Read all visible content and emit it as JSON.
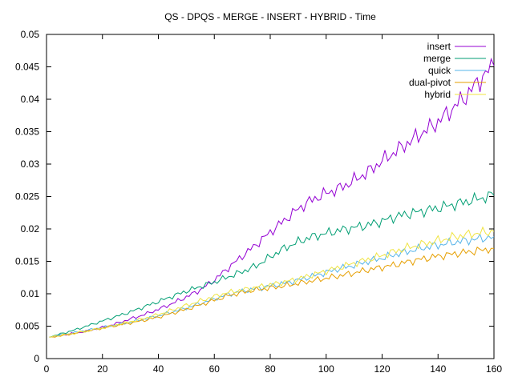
{
  "chart_data": {
    "type": "line",
    "title": "QS - DPQS - MERGE - INSERT - HYBRID - Time",
    "xlabel": "",
    "ylabel": "",
    "xlim": [
      0,
      160
    ],
    "ylim": [
      0,
      0.05
    ],
    "x_ticks": [
      0,
      20,
      40,
      60,
      80,
      100,
      120,
      140,
      160
    ],
    "x_tick_labels": [
      "0",
      "20",
      "40",
      "60",
      "80",
      "100",
      "120",
      "140",
      "160"
    ],
    "y_ticks": [
      0,
      0.005,
      0.01,
      0.015,
      0.02,
      0.025,
      0.03,
      0.035,
      0.04,
      0.045,
      0.05
    ],
    "y_tick_labels": [
      "0",
      "0.005",
      "0.01",
      "0.015",
      "0.02",
      "0.025",
      "0.03",
      "0.035",
      "0.04",
      "0.045",
      "0.05"
    ],
    "grid": false,
    "legend_position": "top-right",
    "x": [
      1,
      5,
      10,
      15,
      20,
      25,
      30,
      35,
      40,
      45,
      50,
      55,
      60,
      65,
      70,
      75,
      80,
      85,
      90,
      95,
      100,
      105,
      110,
      115,
      120,
      125,
      130,
      135,
      140,
      145,
      150,
      155,
      160
    ],
    "series": [
      {
        "name": "insert",
        "color": "#9400d3",
        "values": [
          0.0033,
          0.0036,
          0.0039,
          0.0043,
          0.0048,
          0.0054,
          0.0061,
          0.0068,
          0.0076,
          0.0085,
          0.0095,
          0.0106,
          0.0121,
          0.014,
          0.0158,
          0.0176,
          0.0195,
          0.0213,
          0.0231,
          0.0245,
          0.0255,
          0.0263,
          0.0275,
          0.0288,
          0.0305,
          0.032,
          0.0335,
          0.035,
          0.0365,
          0.0385,
          0.0405,
          0.043,
          0.0452
        ]
      },
      {
        "name": "merge",
        "color": "#009e73",
        "values": [
          0.0033,
          0.0038,
          0.0044,
          0.0051,
          0.0058,
          0.0065,
          0.0072,
          0.008,
          0.0088,
          0.0096,
          0.0104,
          0.0111,
          0.0118,
          0.0126,
          0.0134,
          0.0143,
          0.0157,
          0.017,
          0.018,
          0.0188,
          0.0193,
          0.0198,
          0.0202,
          0.0206,
          0.0212,
          0.0219,
          0.0224,
          0.0228,
          0.0232,
          0.0237,
          0.0242,
          0.0247,
          0.0252
        ]
      },
      {
        "name": "quick",
        "color": "#56b4e9",
        "values": [
          0.0033,
          0.0036,
          0.004,
          0.0044,
          0.0048,
          0.0052,
          0.0056,
          0.0061,
          0.0066,
          0.0072,
          0.0078,
          0.0085,
          0.0092,
          0.0099,
          0.0104,
          0.0108,
          0.0112,
          0.0116,
          0.0121,
          0.0127,
          0.0133,
          0.0139,
          0.0144,
          0.015,
          0.0155,
          0.0161,
          0.0166,
          0.0171,
          0.0175,
          0.0179,
          0.0182,
          0.0185,
          0.0188
        ]
      },
      {
        "name": "dual-pivot",
        "color": "#e69f00",
        "values": [
          0.0033,
          0.0035,
          0.0039,
          0.0043,
          0.0047,
          0.0051,
          0.0055,
          0.0059,
          0.0064,
          0.007,
          0.0076,
          0.0083,
          0.009,
          0.0097,
          0.0102,
          0.0106,
          0.0109,
          0.0112,
          0.0116,
          0.012,
          0.0124,
          0.0128,
          0.0132,
          0.0137,
          0.0141,
          0.0145,
          0.015,
          0.0154,
          0.0158,
          0.0161,
          0.0164,
          0.0167,
          0.017
        ]
      },
      {
        "name": "hybrid",
        "color": "#f0e442",
        "values": [
          0.0033,
          0.0036,
          0.0039,
          0.0043,
          0.0047,
          0.0052,
          0.0057,
          0.0062,
          0.0068,
          0.0075,
          0.0082,
          0.0089,
          0.0096,
          0.0102,
          0.0106,
          0.011,
          0.0114,
          0.0118,
          0.0123,
          0.0129,
          0.0135,
          0.0141,
          0.0147,
          0.0153,
          0.0159,
          0.0166,
          0.0172,
          0.0177,
          0.0182,
          0.0187,
          0.0191,
          0.0194,
          0.0196
        ]
      }
    ]
  }
}
